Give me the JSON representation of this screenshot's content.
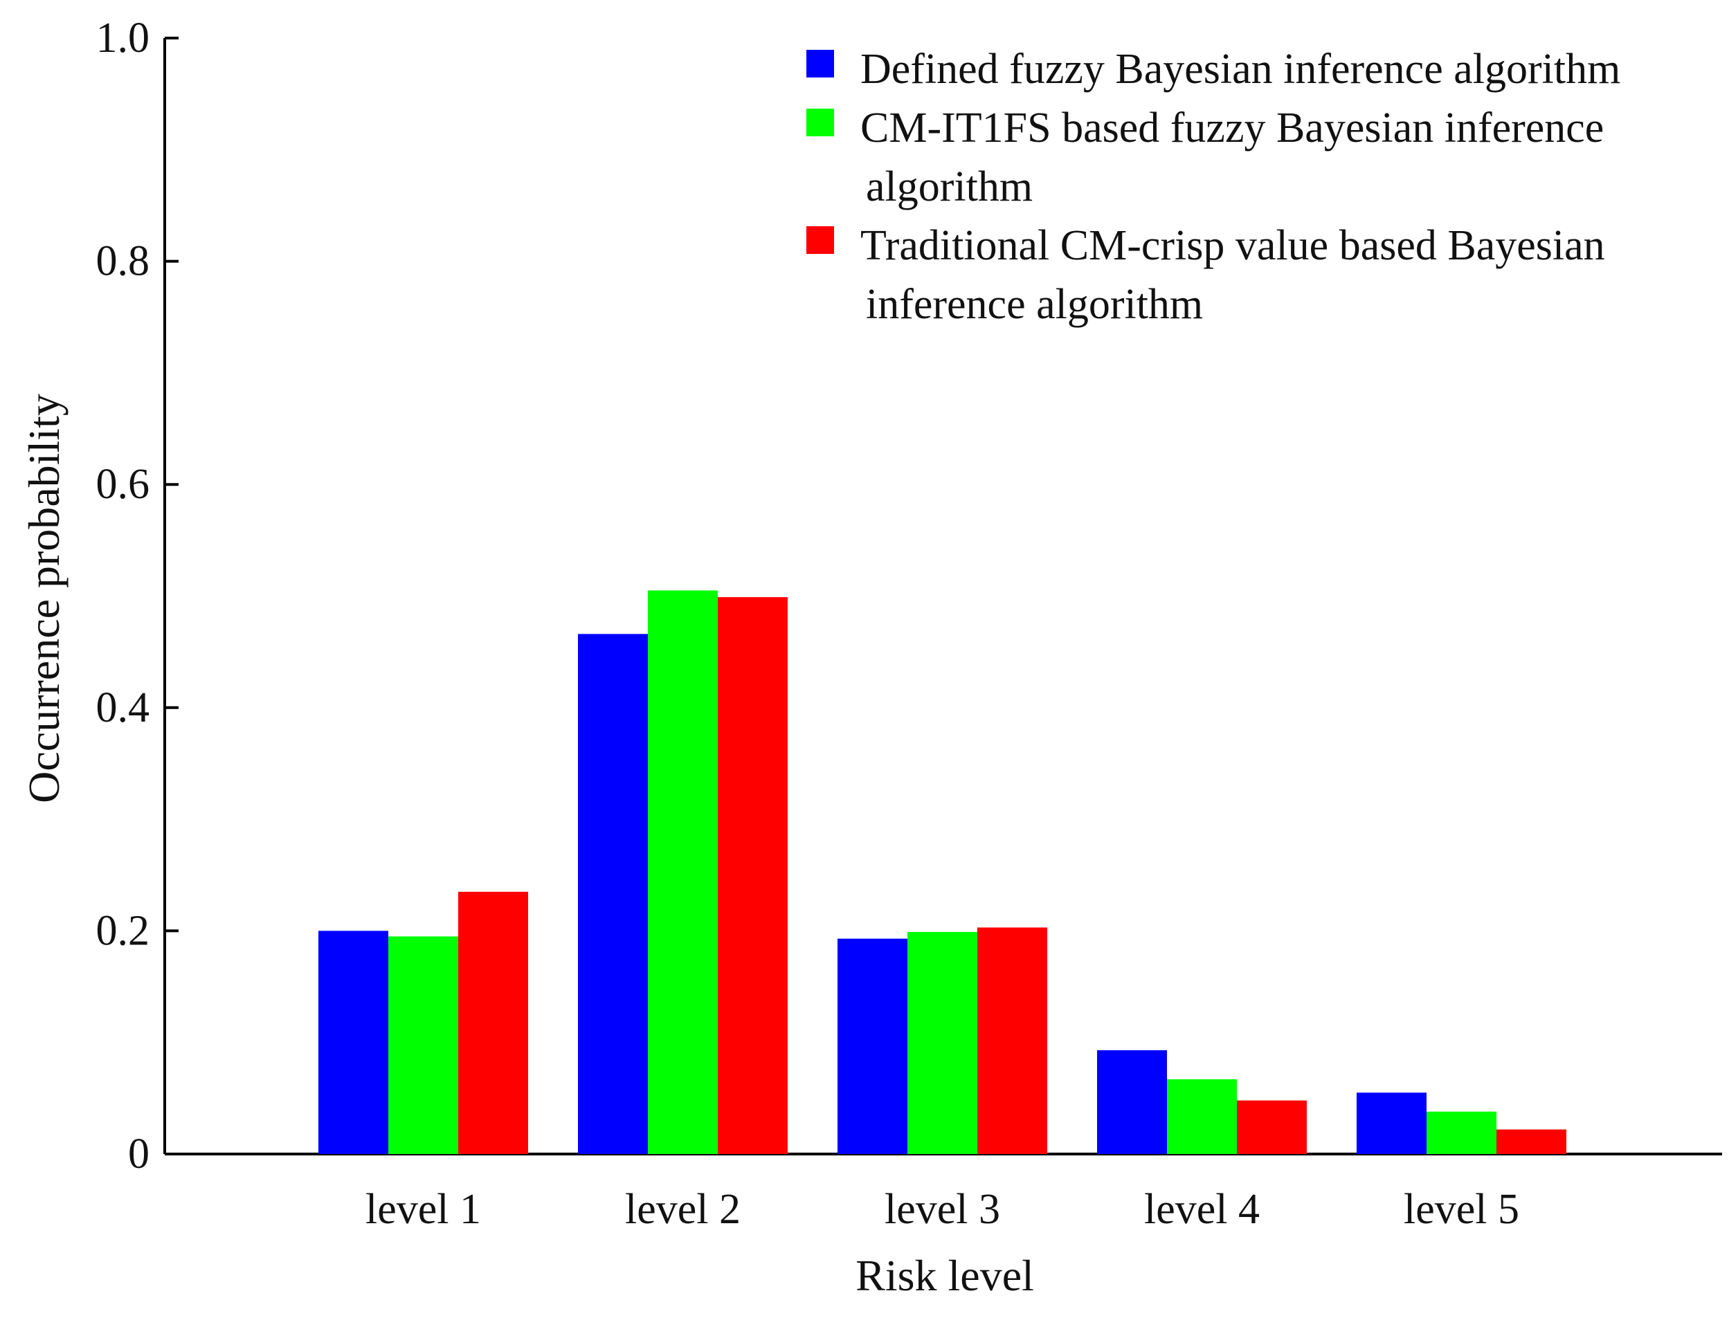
{
  "chart_data": {
    "type": "bar",
    "title": "",
    "xlabel": "Risk level",
    "ylabel": "Occurrence probability",
    "ylim": [
      0,
      1.0
    ],
    "yticks": [
      "0",
      "0.2",
      "0.4",
      "0.6",
      "0.8",
      "1.0"
    ],
    "ytick_values": [
      0,
      0.2,
      0.4,
      0.6,
      0.8,
      1.0
    ],
    "categories": [
      "level 1",
      "level 2",
      "level 3",
      "level 4",
      "level 5"
    ],
    "series": [
      {
        "name": "Defined fuzzy Bayesian inference algorithm",
        "color": "#0000ff",
        "values": [
          0.2,
          0.466,
          0.193,
          0.093,
          0.055
        ]
      },
      {
        "name": "CM-IT1FS based fuzzy Bayesian inference algorithm",
        "legend_lines": [
          "CM-IT1FS based fuzzy Bayesian inference",
          "algorithm"
        ],
        "color": "#00ff00",
        "values": [
          0.195,
          0.505,
          0.199,
          0.067,
          0.038
        ]
      },
      {
        "name": "Traditional CM-crisp value based Bayesian inference algorithm",
        "legend_lines": [
          "Traditional CM-crisp value based Bayesian",
          "inference algorithm"
        ],
        "color": "#ff0000",
        "values": [
          0.235,
          0.499,
          0.203,
          0.048,
          0.022
        ]
      }
    ],
    "grid": false,
    "legend_position": "top-right"
  }
}
